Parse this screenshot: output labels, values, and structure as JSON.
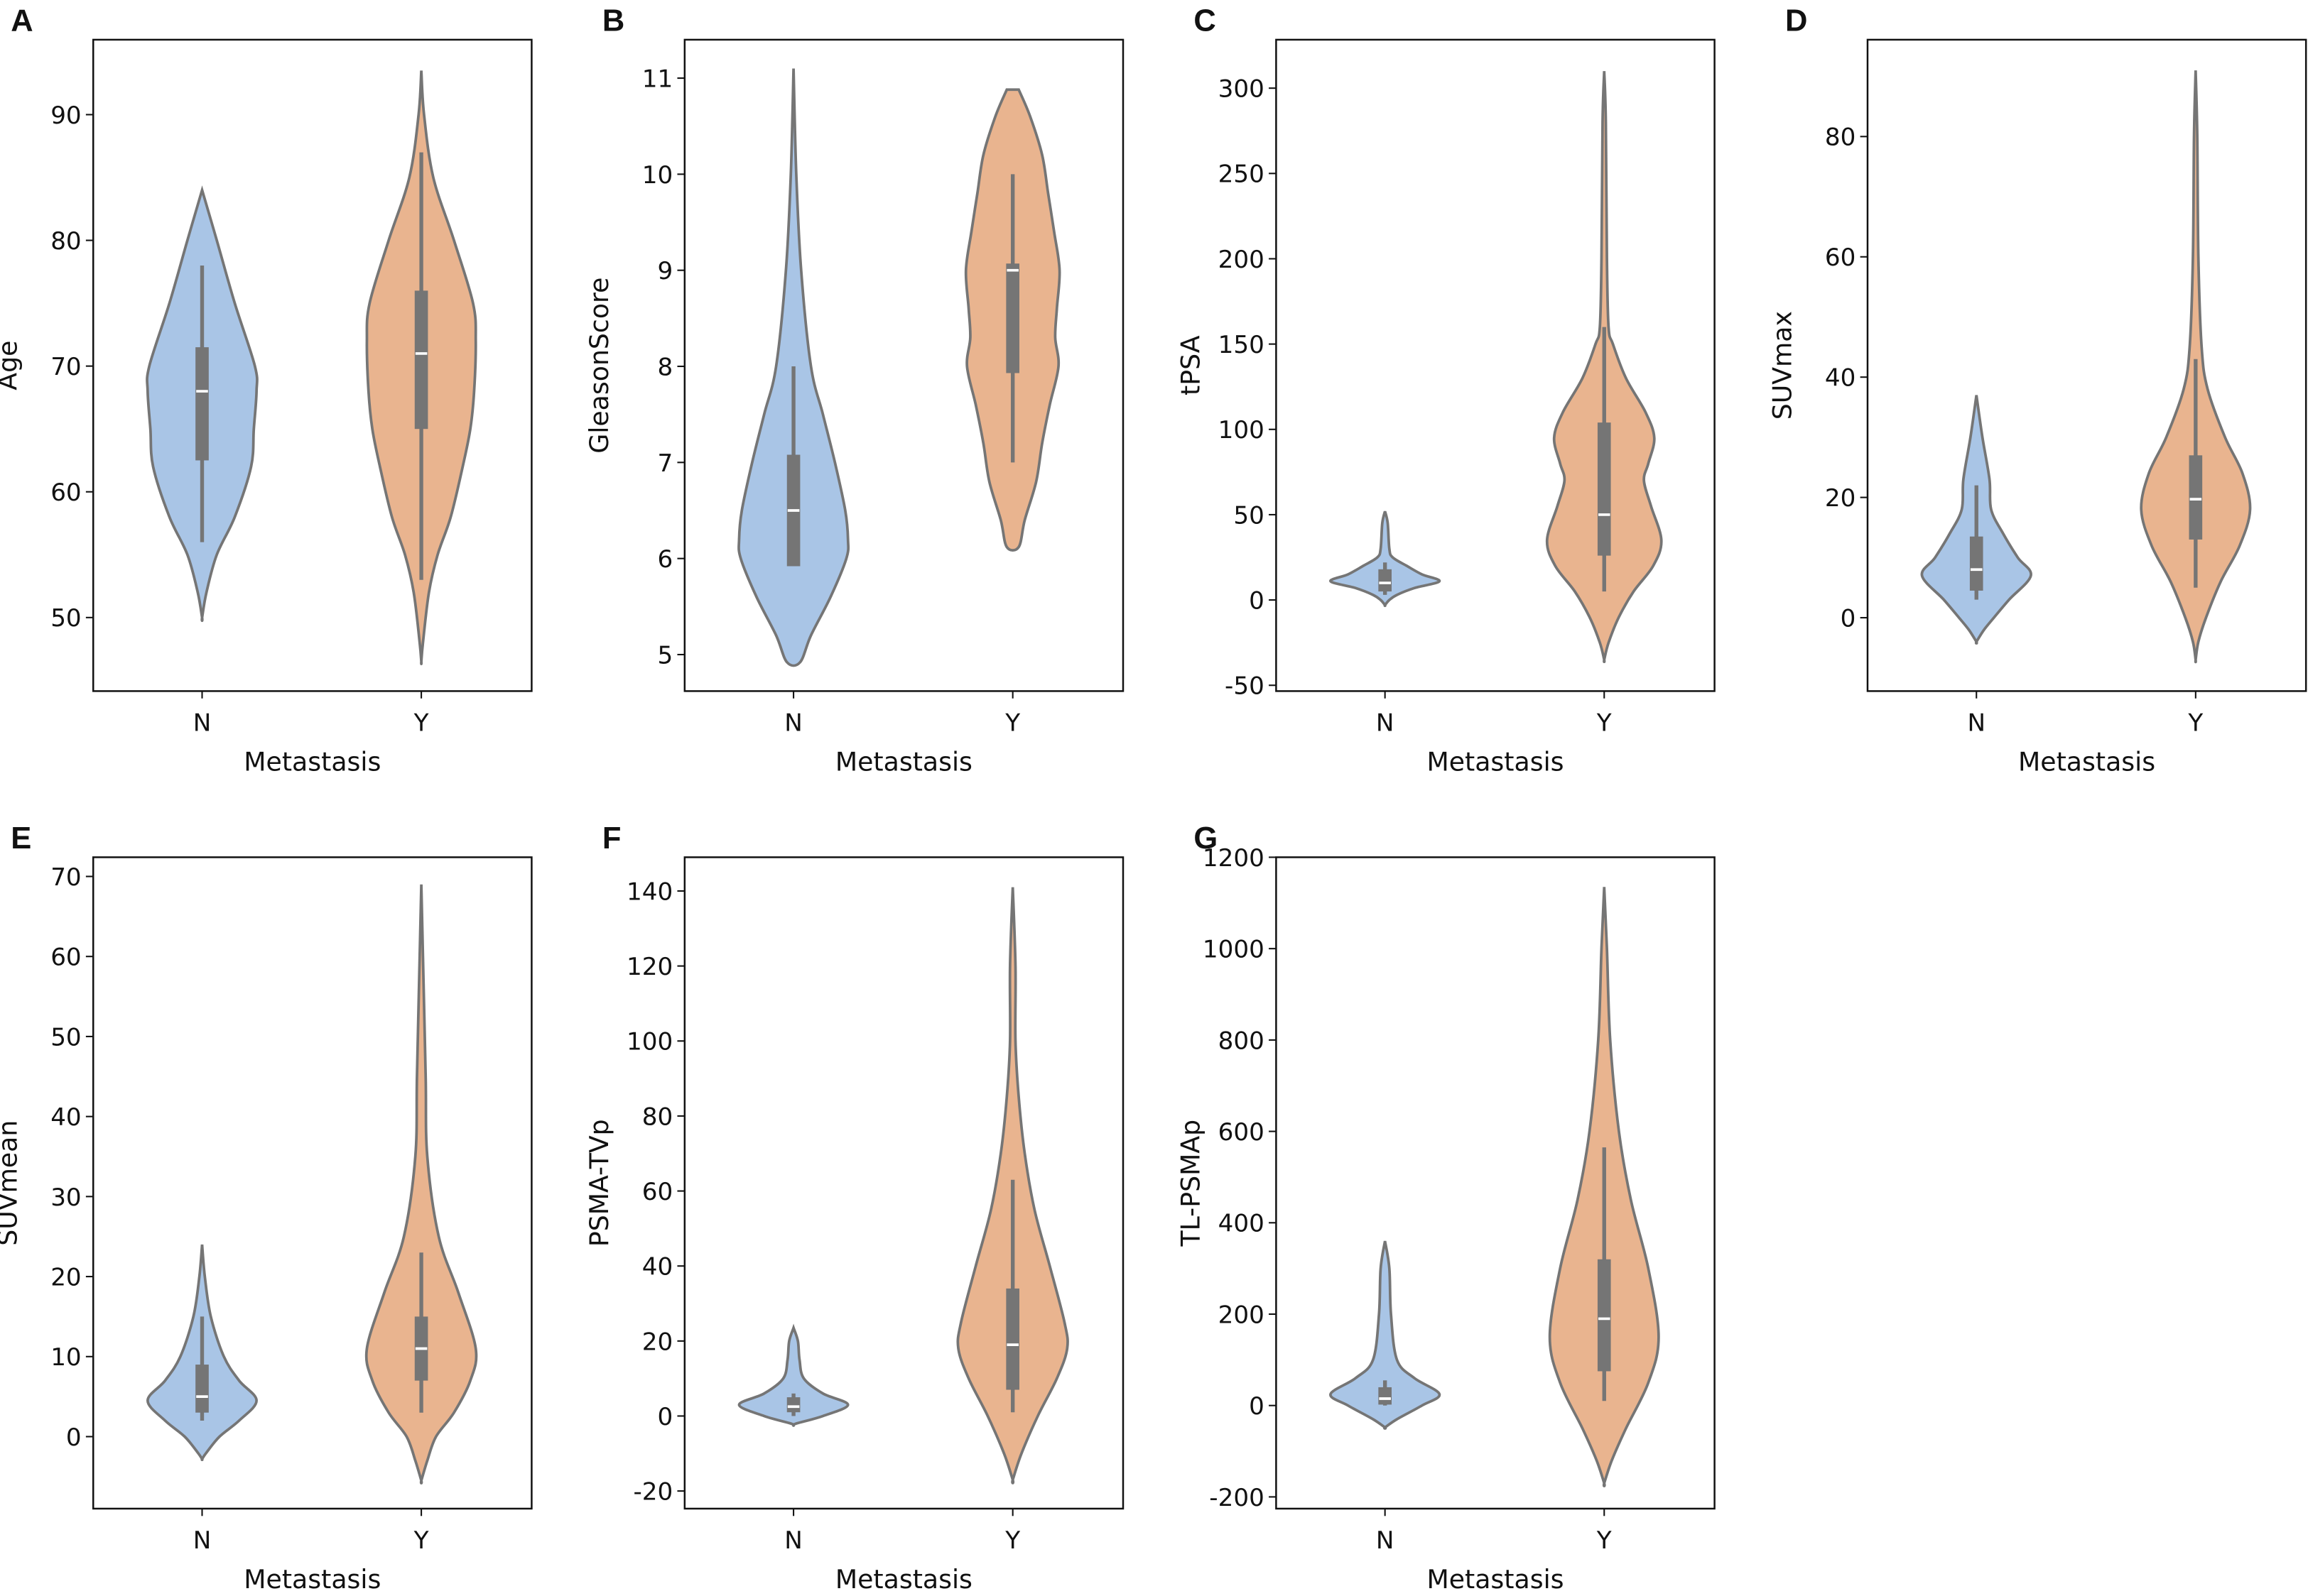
{
  "chart_data": {
    "type": "violin",
    "colors": {
      "N": "#a9c5e6",
      "Y": "#e9b48f",
      "outline": "#757575",
      "box": "#757575",
      "median": "#ffffff"
    },
    "panels": [
      {
        "letter": "A",
        "xlabel": "Metastasis",
        "ylabel": "Age",
        "categories": [
          "N",
          "Y"
        ],
        "yticks": [
          50,
          60,
          70,
          80,
          90
        ],
        "ylim": [
          44.15,
          95.96
        ],
        "violins": [
          {
            "category": "N",
            "whisker": [
              56,
              78
            ],
            "box": [
              62.5,
              71.5
            ],
            "median": 68,
            "density": [
              [
                84,
                0
              ],
              [
                80,
                0.27
              ],
              [
                75,
                0.6
              ],
              [
                70,
                0.97
              ],
              [
                68,
                1
              ],
              [
                65,
                0.95
              ],
              [
                62,
                0.9
              ],
              [
                58,
                0.6
              ],
              [
                55,
                0.27
              ],
              [
                52,
                0.08
              ],
              [
                50,
                0
              ]
            ]
          },
          {
            "category": "Y",
            "whisker": [
              53,
              87
            ],
            "box": [
              65,
              76
            ],
            "median": 71,
            "density": [
              [
                93.5,
                0
              ],
              [
                90,
                0.05
              ],
              [
                85,
                0.22
              ],
              [
                80,
                0.6
              ],
              [
                75,
                0.95
              ],
              [
                72,
                1
              ],
              [
                68,
                0.97
              ],
              [
                65,
                0.9
              ],
              [
                62,
                0.76
              ],
              [
                58,
                0.54
              ],
              [
                55,
                0.3
              ],
              [
                52,
                0.14
              ],
              [
                48,
                0.03
              ],
              [
                46.5,
                0
              ]
            ]
          }
        ]
      },
      {
        "letter": "B",
        "xlabel": "Metastasis",
        "ylabel": "GleasonScore",
        "categories": [
          "N",
          "Y"
        ],
        "yticks": [
          5,
          6,
          7,
          8,
          9,
          10,
          11
        ],
        "ylim": [
          4.62,
          11.4
        ],
        "violins": [
          {
            "category": "N",
            "whisker": [
              5.92,
              8
            ],
            "box": [
              5.92,
              7.08
            ],
            "median": 6.5,
            "density": [
              [
                11.1,
                0
              ],
              [
                10,
                0.05
              ],
              [
                9,
                0.14
              ],
              [
                8,
                0.32
              ],
              [
                7.5,
                0.54
              ],
              [
                7,
                0.76
              ],
              [
                6.5,
                0.95
              ],
              [
                6.2,
                1
              ],
              [
                6,
                0.97
              ],
              [
                5.6,
                0.68
              ],
              [
                5.2,
                0.32
              ],
              [
                4.92,
                0.12
              ]
            ]
          },
          {
            "category": "Y",
            "whisker": [
              7,
              10
            ],
            "box": [
              7.93,
              9.07
            ],
            "median": 9,
            "density": [
              [
                10.88,
                0.11
              ],
              [
                10.6,
                0.32
              ],
              [
                10.2,
                0.54
              ],
              [
                9.8,
                0.65
              ],
              [
                9.4,
                0.76
              ],
              [
                9,
                0.86
              ],
              [
                8.6,
                0.81
              ],
              [
                8.3,
                0.78
              ],
              [
                8,
                0.84
              ],
              [
                7.6,
                0.68
              ],
              [
                7.2,
                0.54
              ],
              [
                6.8,
                0.43
              ],
              [
                6.4,
                0.22
              ],
              [
                6.12,
                0.11
              ]
            ]
          }
        ]
      },
      {
        "letter": "C",
        "xlabel": "Metastasis",
        "ylabel": "tPSA",
        "categories": [
          "N",
          "Y"
        ],
        "yticks": [
          -50,
          0,
          50,
          100,
          150,
          200,
          250,
          300
        ],
        "ylim": [
          -53.4,
          328.4
        ],
        "violins": [
          {
            "category": "N",
            "whisker": [
              3,
              22
            ],
            "box": [
              5,
              18
            ],
            "median": 10,
            "density": [
              [
                52,
                0
              ],
              [
                45,
                0.05
              ],
              [
                30,
                0.08
              ],
              [
                25,
                0.14
              ],
              [
                20,
                0.4
              ],
              [
                15,
                0.68
              ],
              [
                11,
                1
              ],
              [
                7,
                0.54
              ],
              [
                3,
                0.22
              ],
              [
                0,
                0.08
              ],
              [
                -3,
                0
              ]
            ]
          },
          {
            "category": "Y",
            "whisker": [
              5,
              160
            ],
            "box": [
              26,
              104
            ],
            "median": 50,
            "density": [
              [
                310,
                0
              ],
              [
                280,
                0.03
              ],
              [
                200,
                0.05
              ],
              [
                160,
                0.08
              ],
              [
                150,
                0.16
              ],
              [
                130,
                0.4
              ],
              [
                110,
                0.76
              ],
              [
                95,
                0.92
              ],
              [
                80,
                0.81
              ],
              [
                70,
                0.73
              ],
              [
                55,
                0.86
              ],
              [
                35,
                1.05
              ],
              [
                20,
                0.9
              ],
              [
                5,
                0.54
              ],
              [
                -10,
                0.27
              ],
              [
                -25,
                0.08
              ],
              [
                -35,
                0
              ]
            ]
          }
        ]
      },
      {
        "letter": "D",
        "xlabel": "Metastasis",
        "ylabel": "SUVmax",
        "categories": [
          "N",
          "Y"
        ],
        "yticks": [
          0,
          20,
          40,
          60,
          80
        ],
        "ylim": [
          -12.2,
          96.1
        ],
        "violins": [
          {
            "category": "N",
            "whisker": [
              3,
              22
            ],
            "box": [
              4.5,
              13.5
            ],
            "median": 8,
            "density": [
              [
                37,
                0
              ],
              [
                30,
                0.11
              ],
              [
                23,
                0.24
              ],
              [
                18,
                0.27
              ],
              [
                14,
                0.49
              ],
              [
                10,
                0.76
              ],
              [
                7,
                1
              ],
              [
                3,
                0.6
              ],
              [
                0,
                0.32
              ],
              [
                -2,
                0.14
              ],
              [
                -4,
                0
              ]
            ]
          },
          {
            "category": "Y",
            "whisker": [
              5,
              43
            ],
            "box": [
              13,
              27
            ],
            "median": 19.7,
            "density": [
              [
                91,
                0
              ],
              [
                80,
                0.03
              ],
              [
                60,
                0.05
              ],
              [
                45,
                0.11
              ],
              [
                38,
                0.22
              ],
              [
                30,
                0.54
              ],
              [
                24,
                0.86
              ],
              [
                18,
                1
              ],
              [
                12,
                0.81
              ],
              [
                6,
                0.46
              ],
              [
                0,
                0.19
              ],
              [
                -4,
                0.05
              ],
              [
                -7,
                0
              ]
            ]
          }
        ]
      },
      {
        "letter": "E",
        "xlabel": "Metastasis",
        "ylabel": "SUVmean",
        "categories": [
          "N",
          "Y"
        ],
        "yticks": [
          0,
          10,
          20,
          30,
          40,
          50,
          60,
          70
        ],
        "ylim": [
          -9.0,
          72.4
        ],
        "violins": [
          {
            "category": "N",
            "whisker": [
              2,
              15
            ],
            "box": [
              3,
              9
            ],
            "median": 5,
            "density": [
              [
                24,
                0
              ],
              [
                20,
                0.05
              ],
              [
                15,
                0.16
              ],
              [
                10,
                0.4
              ],
              [
                7,
                0.68
              ],
              [
                4.5,
                1
              ],
              [
                2,
                0.68
              ],
              [
                0,
                0.32
              ],
              [
                -2,
                0.08
              ],
              [
                -2.8,
                0
              ]
            ]
          },
          {
            "category": "Y",
            "whisker": [
              3,
              23
            ],
            "box": [
              7,
              15
            ],
            "median": 11,
            "density": [
              [
                69,
                0
              ],
              [
                60,
                0.03
              ],
              [
                45,
                0.08
              ],
              [
                35,
                0.11
              ],
              [
                25,
                0.32
              ],
              [
                18,
                0.68
              ],
              [
                11,
                1
              ],
              [
                7,
                0.9
              ],
              [
                3,
                0.6
              ],
              [
                0,
                0.27
              ],
              [
                -3,
                0.11
              ],
              [
                -5.5,
                0
              ]
            ]
          }
        ]
      },
      {
        "letter": "F",
        "xlabel": "Metastasis",
        "ylabel": "PSMA-TVp",
        "categories": [
          "N",
          "Y"
        ],
        "yticks": [
          -20,
          0,
          20,
          40,
          60,
          80,
          100,
          120,
          140
        ],
        "ylim": [
          -24.7,
          149
        ],
        "violins": [
          {
            "category": "N",
            "whisker": [
              0,
              6
            ],
            "box": [
              1,
              5
            ],
            "median": 2.5,
            "density": [
              [
                23.5,
                0
              ],
              [
                20,
                0.08
              ],
              [
                15,
                0.11
              ],
              [
                10,
                0.19
              ],
              [
                6,
                0.54
              ],
              [
                3,
                1
              ],
              [
                0,
                0.54
              ],
              [
                -2,
                0.05
              ],
              [
                -2.5,
                0
              ]
            ]
          },
          {
            "category": "Y",
            "whisker": [
              1,
              63
            ],
            "box": [
              7,
              34
            ],
            "median": 19,
            "density": [
              [
                141,
                0
              ],
              [
                120,
                0.05
              ],
              [
                100,
                0.05
              ],
              [
                85,
                0.11
              ],
              [
                70,
                0.22
              ],
              [
                55,
                0.4
              ],
              [
                40,
                0.68
              ],
              [
                25,
                0.95
              ],
              [
                18,
                1
              ],
              [
                10,
                0.81
              ],
              [
                0,
                0.46
              ],
              [
                -10,
                0.16
              ],
              [
                -17,
                0
              ]
            ]
          }
        ]
      },
      {
        "letter": "G",
        "xlabel": "Metastasis",
        "ylabel": "TL-PSMAp",
        "categories": [
          "N",
          "Y"
        ],
        "yticks": [
          -200,
          0,
          200,
          400,
          600,
          800,
          1000,
          1200
        ],
        "ylim": [
          -225.7,
          1200
        ],
        "violins": [
          {
            "category": "N",
            "whisker": [
              0,
              55
            ],
            "box": [
              2,
              40
            ],
            "median": 15,
            "density": [
              [
                360,
                0
              ],
              [
                300,
                0.08
              ],
              [
                200,
                0.11
              ],
              [
                100,
                0.22
              ],
              [
                60,
                0.54
              ],
              [
                25,
                1
              ],
              [
                0,
                0.68
              ],
              [
                -30,
                0.22
              ],
              [
                -48,
                0
              ]
            ]
          },
          {
            "category": "Y",
            "whisker": [
              10,
              565
            ],
            "box": [
              75,
              320
            ],
            "median": 190,
            "density": [
              [
                1135,
                0
              ],
              [
                1000,
                0.05
              ],
              [
                800,
                0.11
              ],
              [
                600,
                0.27
              ],
              [
                450,
                0.49
              ],
              [
                300,
                0.81
              ],
              [
                150,
                1
              ],
              [
                50,
                0.81
              ],
              [
                -50,
                0.4
              ],
              [
                -120,
                0.14
              ],
              [
                -170,
                0
              ]
            ]
          }
        ]
      }
    ]
  }
}
